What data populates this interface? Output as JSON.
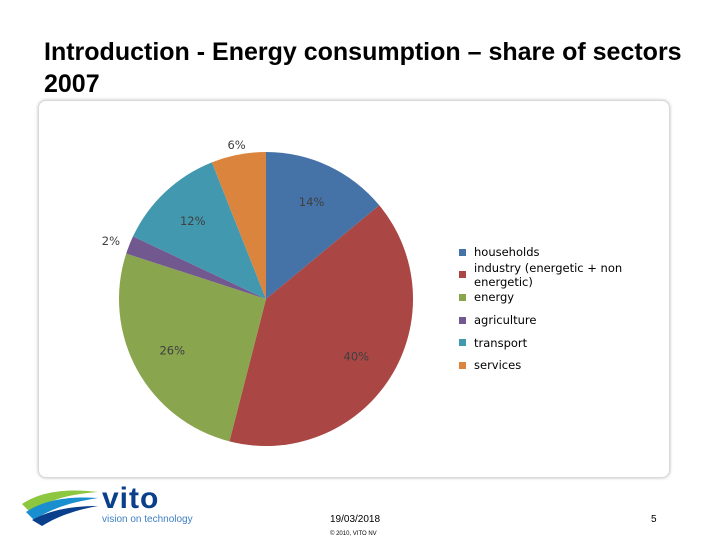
{
  "slide": {
    "title": "Introduction - Energy consumption – share of sectors 2007",
    "footer_date": "19/03/2018",
    "footer_copyright": "© 2010, VITO NV",
    "page_number": "5",
    "logo_text": "vito",
    "logo_tagline": "vision on technology"
  },
  "chart_data": {
    "type": "pie",
    "title": "",
    "legend_position": "right",
    "slices": [
      {
        "name": "households",
        "value": 14,
        "label": "14%",
        "color": "#4572a7"
      },
      {
        "name": "industry (energetic + non energetic)",
        "value": 40,
        "label": "40%",
        "color": "#aa4643"
      },
      {
        "name": "energy",
        "value": 26,
        "label": "26%",
        "color": "#89a54e"
      },
      {
        "name": "agriculture",
        "value": 2,
        "label": "2%",
        "color": "#71588f"
      },
      {
        "name": "transport",
        "value": 12,
        "label": "12%",
        "color": "#4198af"
      },
      {
        "name": "services",
        "value": 6,
        "label": "6%",
        "color": "#db843d"
      }
    ]
  },
  "colors": {
    "logo_blue": "#0a3f8c",
    "logo_green": "#8dc63f",
    "tagline_blue": "#3f7fc4"
  },
  "icons": {
    "logo_mark": "vito-swoosh-logo-icon"
  }
}
